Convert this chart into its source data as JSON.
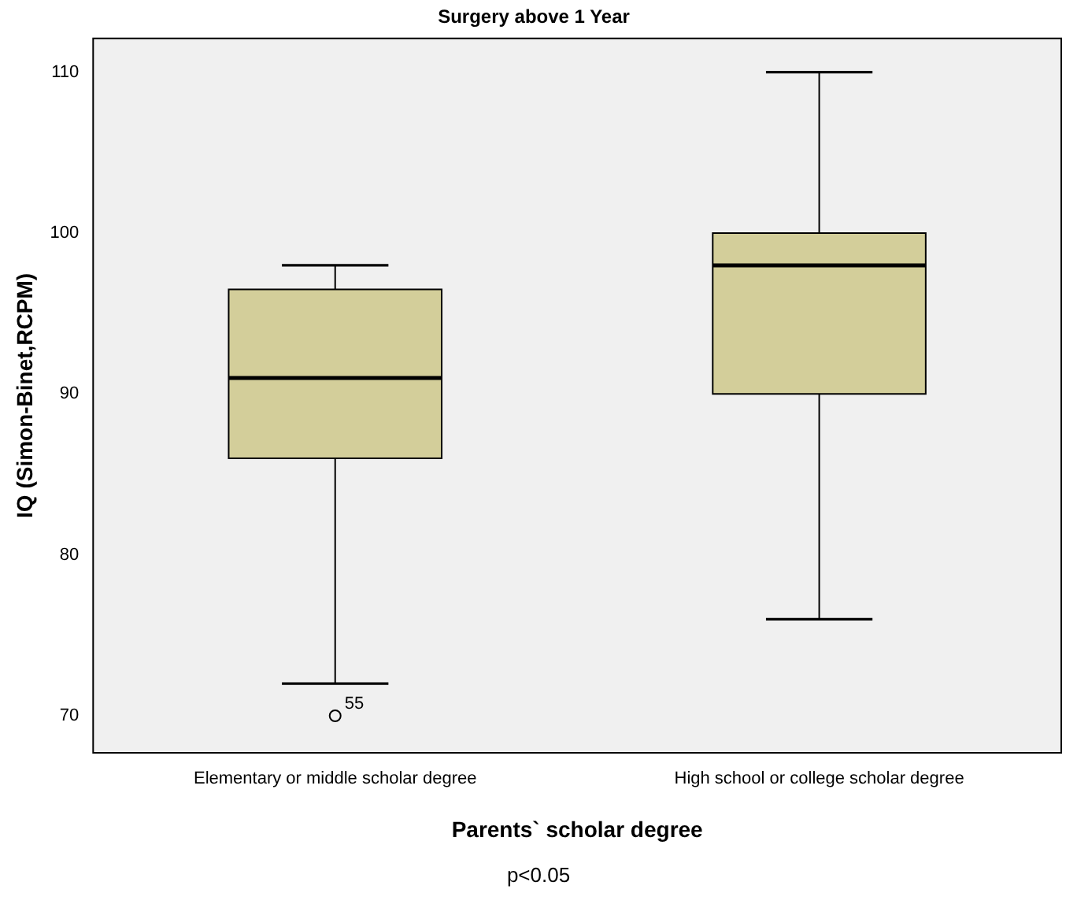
{
  "chart_data": {
    "type": "box",
    "title": "Surgery above 1 Year",
    "xlabel": "Parents` scholar degree",
    "ylabel": "IQ (Simon-Binet,RCPM)",
    "categories": [
      "Elementary or middle scholar degree",
      "High school or college scholar degree"
    ],
    "color": "#d3ce9a",
    "boxes": [
      {
        "low": 72,
        "q1": 86,
        "median": 91,
        "q3": 96.5,
        "high": 98,
        "outliers": [
          70
        ]
      },
      {
        "low": 76,
        "q1": 90,
        "median": 98,
        "q3": 100,
        "high": 110
      }
    ],
    "ylim": [
      67.7,
      112.1
    ],
    "yticks": [
      70,
      80,
      90,
      100,
      110
    ],
    "grid": false,
    "legend": false,
    "annotations": [
      "55",
      "p<0.05"
    ]
  }
}
